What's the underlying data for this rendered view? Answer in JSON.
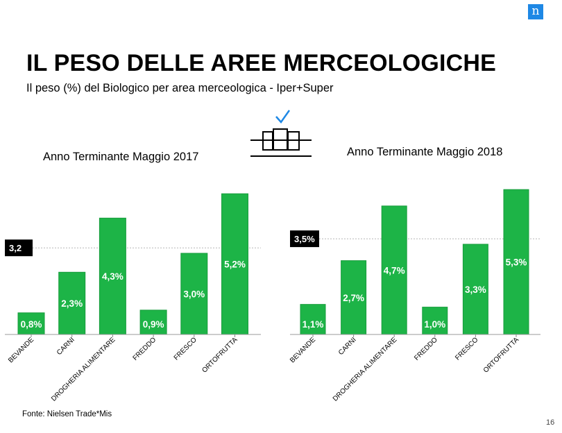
{
  "header": {
    "logo_letter": "n",
    "title": "IL PESO DELLE AREE MERCEOLOGICHE",
    "subtitle": "Il peso (%) del Biologico per area merceologica - Iper+Super"
  },
  "colors": {
    "bar": "#1db447",
    "bar_edge": "#189c3c",
    "badge_bg": "#000000",
    "logo": "#1e88e5",
    "icon_check": "#1e88e5"
  },
  "icons": [
    "shelf-check-icon"
  ],
  "chart_data": [
    {
      "type": "bar",
      "title": "Anno Terminante Maggio 2017",
      "categories": [
        "BEVANDE",
        "CARNI",
        "DROGHERIA ALIMENTARE",
        "FREDDO",
        "FRESCO",
        "ORTOFRUTTA"
      ],
      "values": [
        0.8,
        2.3,
        4.3,
        0.9,
        3.0,
        5.2
      ],
      "value_labels": [
        "0,8%",
        "2,3%",
        "4,3%",
        "0,9%",
        "3,0%",
        "5,2%"
      ],
      "average": 3.2,
      "average_label": "3,2",
      "ylim": [
        0,
        5.5
      ],
      "xlabel": "",
      "ylabel": "",
      "grid": false
    },
    {
      "type": "bar",
      "title": "Anno Terminante Maggio 2018",
      "categories": [
        "BEVANDE",
        "CARNI",
        "DROGHERIA ALIMENTARE",
        "FREDDO",
        "FRESCO",
        "ORTOFRUTTA"
      ],
      "values": [
        1.1,
        2.7,
        4.7,
        1.0,
        3.3,
        5.3
      ],
      "value_labels": [
        "1,1%",
        "2,7%",
        "4,7%",
        "1,0%",
        "3,3%",
        "5,3%"
      ],
      "average": 3.5,
      "average_label": "3,5%",
      "ylim": [
        0,
        5.5
      ],
      "xlabel": "",
      "ylabel": "",
      "grid": false
    }
  ],
  "footer": {
    "source": "Fonte: Nielsen Trade*Mis",
    "page_number": "16"
  }
}
